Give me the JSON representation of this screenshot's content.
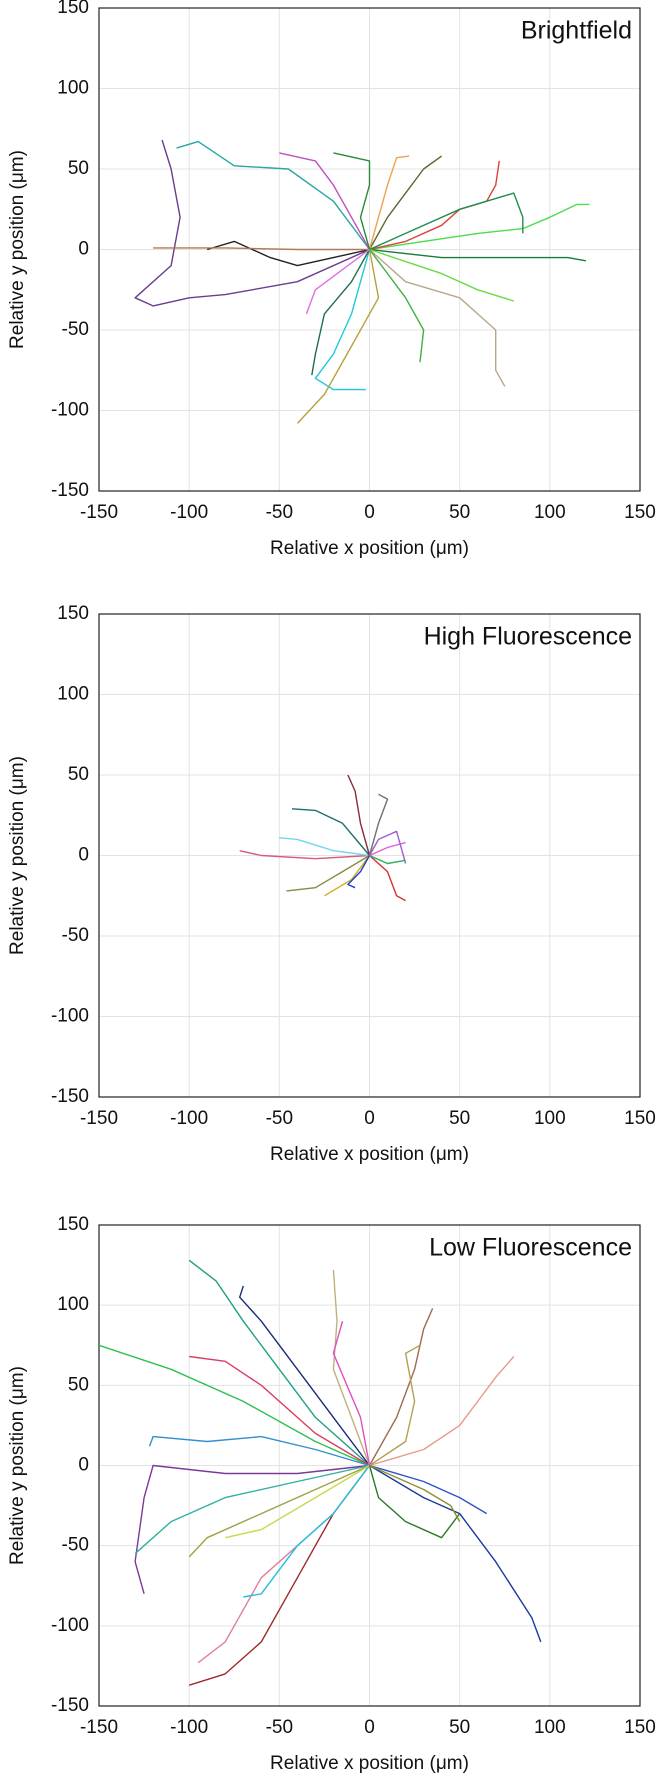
{
  "chart_data": [
    {
      "type": "line",
      "title": "Brightfield",
      "xlabel": "Relative x position (μm)",
      "ylabel": "Relative y position (μm)",
      "xlim": [
        -150,
        150
      ],
      "ylim": [
        -150,
        150
      ],
      "xticks": [
        -150,
        -100,
        -50,
        0,
        50,
        100,
        150
      ],
      "yticks": [
        -150,
        -100,
        -50,
        0,
        50,
        100,
        150
      ],
      "grid": true,
      "series": [
        {
          "color": "#6a3d8f",
          "x": [
            0,
            -40,
            -80,
            -100,
            -120,
            -130,
            -110,
            -105,
            -110,
            -115
          ],
          "values": [
            0,
            -20,
            -28,
            -30,
            -35,
            -30,
            -10,
            20,
            50,
            68
          ]
        },
        {
          "color": "#2aa6a0",
          "x": [
            0,
            -20,
            -45,
            -75,
            -95,
            -107
          ],
          "values": [
            0,
            30,
            50,
            52,
            67,
            63
          ]
        },
        {
          "color": "#222222",
          "x": [
            0,
            -20,
            -40,
            -55,
            -75,
            -90
          ],
          "values": [
            0,
            -5,
            -10,
            -5,
            5,
            0
          ]
        },
        {
          "color": "#b07a5a",
          "x": [
            0,
            -40,
            -80,
            -120
          ],
          "values": [
            0,
            0,
            1,
            1
          ]
        },
        {
          "color": "#4cdc4c",
          "x": [
            0,
            30,
            60,
            85,
            100,
            115,
            122
          ],
          "values": [
            0,
            5,
            10,
            13,
            20,
            28,
            28
          ]
        },
        {
          "color": "#1a7a3a",
          "x": [
            0,
            40,
            80,
            110,
            120
          ],
          "values": [
            0,
            -5,
            -5,
            -5,
            -7
          ]
        },
        {
          "color": "#e0403a",
          "x": [
            0,
            20,
            40,
            50,
            65,
            70,
            72
          ],
          "values": [
            0,
            5,
            15,
            25,
            30,
            40,
            55
          ]
        },
        {
          "color": "#556b2f",
          "x": [
            0,
            10,
            20,
            30,
            40
          ],
          "values": [
            0,
            20,
            35,
            50,
            58
          ]
        },
        {
          "color": "#f0a050",
          "x": [
            0,
            5,
            10,
            15,
            22
          ],
          "values": [
            0,
            20,
            40,
            57,
            58
          ]
        },
        {
          "color": "#b8a88a",
          "x": [
            0,
            20,
            50,
            70,
            70,
            75
          ],
          "values": [
            0,
            -20,
            -30,
            -50,
            -75,
            -85
          ]
        },
        {
          "color": "#22c8d8",
          "x": [
            0,
            -10,
            -20,
            -30,
            -20,
            -2
          ],
          "values": [
            0,
            -40,
            -65,
            -80,
            -87,
            -87
          ]
        },
        {
          "color": "#b8a040",
          "x": [
            0,
            5,
            -10,
            -25,
            -40
          ],
          "values": [
            0,
            -30,
            -60,
            -90,
            -108
          ]
        },
        {
          "color": "#1e6e4e",
          "x": [
            0,
            -10,
            -25,
            -30,
            -32
          ],
          "values": [
            0,
            -20,
            -40,
            -65,
            -78
          ]
        },
        {
          "color": "#40b040",
          "x": [
            0,
            20,
            30,
            28
          ],
          "values": [
            0,
            -30,
            -50,
            -70
          ]
        },
        {
          "color": "#66dd44",
          "x": [
            0,
            40,
            60,
            80
          ],
          "values": [
            0,
            -15,
            -25,
            -32
          ]
        },
        {
          "color": "#c050c0",
          "x": [
            0,
            -10,
            -20,
            -30,
            -50
          ],
          "values": [
            0,
            20,
            40,
            55,
            60
          ]
        },
        {
          "color": "#2a8a3a",
          "x": [
            0,
            -5,
            0,
            0,
            -20
          ],
          "values": [
            0,
            20,
            40,
            55,
            60
          ]
        },
        {
          "color": "#1f8f50",
          "x": [
            0,
            20,
            50,
            80,
            85,
            85
          ],
          "values": [
            0,
            10,
            25,
            35,
            20,
            10
          ]
        },
        {
          "color": "#e070e0",
          "x": [
            0,
            -30,
            -35
          ],
          "values": [
            0,
            -25,
            -40
          ]
        }
      ]
    },
    {
      "type": "line",
      "title": "High Fluorescence",
      "xlabel": "Relative x position (μm)",
      "ylabel": "Relative y position (μm)",
      "xlim": [
        -150,
        150
      ],
      "ylim": [
        -150,
        150
      ],
      "xticks": [
        -150,
        -100,
        -50,
        0,
        50,
        100,
        150
      ],
      "yticks": [
        -150,
        -100,
        -50,
        0,
        50,
        100,
        150
      ],
      "grid": true,
      "series": [
        {
          "color": "#d85a80",
          "x": [
            0,
            -30,
            -60,
            -72
          ],
          "values": [
            0,
            -2,
            0,
            3
          ]
        },
        {
          "color": "#70d8e8",
          "x": [
            0,
            -20,
            -40,
            -50
          ],
          "values": [
            0,
            3,
            10,
            11
          ]
        },
        {
          "color": "#1e6e6e",
          "x": [
            0,
            -15,
            -30,
            -43
          ],
          "values": [
            0,
            20,
            28,
            29
          ]
        },
        {
          "color": "#8a8a40",
          "x": [
            0,
            -15,
            -30,
            -46
          ],
          "values": [
            0,
            -10,
            -20,
            -22
          ]
        },
        {
          "color": "#d0b020",
          "x": [
            0,
            -10,
            -25
          ],
          "values": [
            0,
            -15,
            -25
          ]
        },
        {
          "color": "#8a2a3a",
          "x": [
            0,
            -5,
            -8,
            -12
          ],
          "values": [
            0,
            20,
            40,
            50
          ]
        },
        {
          "color": "#707070",
          "x": [
            0,
            5,
            10,
            5
          ],
          "values": [
            0,
            20,
            35,
            38
          ]
        },
        {
          "color": "#d83030",
          "x": [
            0,
            10,
            15,
            20
          ],
          "values": [
            0,
            -10,
            -25,
            -28
          ]
        },
        {
          "color": "#e060e0",
          "x": [
            0,
            10,
            20
          ],
          "values": [
            0,
            5,
            8
          ]
        },
        {
          "color": "#2040d0",
          "x": [
            0,
            -5,
            -12,
            -8
          ],
          "values": [
            0,
            -10,
            -18,
            -20
          ]
        },
        {
          "color": "#9a60d0",
          "x": [
            0,
            5,
            15,
            20
          ],
          "values": [
            0,
            10,
            15,
            -5
          ]
        },
        {
          "color": "#30b060",
          "x": [
            0,
            10,
            20
          ],
          "values": [
            0,
            -5,
            -3
          ]
        }
      ]
    },
    {
      "type": "line",
      "title": "Low Fluorescence",
      "xlabel": "Relative x position (μm)",
      "ylabel": "Relative y position (μm)",
      "xlim": [
        -150,
        150
      ],
      "ylim": [
        -150,
        150
      ],
      "xticks": [
        -150,
        -100,
        -50,
        0,
        50,
        100,
        150
      ],
      "yticks": [
        -150,
        -100,
        -50,
        0,
        50,
        100,
        150
      ],
      "grid": true,
      "series": [
        {
          "color": "#30c050",
          "x": [
            0,
            -30,
            -70,
            -110,
            -150
          ],
          "values": [
            0,
            15,
            40,
            60,
            75
          ]
        },
        {
          "color": "#20a080",
          "x": [
            0,
            -30,
            -50,
            -70,
            -85,
            -100
          ],
          "values": [
            0,
            30,
            60,
            90,
            115,
            128
          ]
        },
        {
          "color": "#1a2a7a",
          "x": [
            0,
            -20,
            -40,
            -60,
            -72,
            -70
          ],
          "values": [
            0,
            30,
            60,
            90,
            105,
            112
          ]
        },
        {
          "color": "#d84060",
          "x": [
            0,
            -30,
            -60,
            -80,
            -100
          ],
          "values": [
            0,
            20,
            50,
            65,
            68
          ]
        },
        {
          "color": "#1a3a9a",
          "x": [
            0,
            30,
            50,
            70,
            90,
            95
          ],
          "values": [
            0,
            -20,
            -30,
            -60,
            -95,
            -110
          ]
        },
        {
          "color": "#a02a2a",
          "x": [
            0,
            -20,
            -40,
            -60,
            -80,
            -100
          ],
          "values": [
            0,
            -30,
            -70,
            -110,
            -130,
            -137
          ]
        },
        {
          "color": "#e080a0",
          "x": [
            0,
            -20,
            -40,
            -60,
            -80,
            -95
          ],
          "values": [
            0,
            -30,
            -50,
            -70,
            -110,
            -123
          ]
        },
        {
          "color": "#20c0e0",
          "x": [
            0,
            -20,
            -40,
            -60,
            -70
          ],
          "values": [
            0,
            -30,
            -50,
            -80,
            -82
          ]
        },
        {
          "color": "#7a3a9a",
          "x": [
            0,
            -40,
            -80,
            -120,
            -125,
            -130,
            -125
          ],
          "values": [
            0,
            -5,
            -5,
            0,
            -20,
            -60,
            -80
          ]
        },
        {
          "color": "#30b0a0",
          "x": [
            0,
            -40,
            -80,
            -110,
            -130
          ],
          "values": [
            0,
            -10,
            -20,
            -35,
            -55
          ]
        },
        {
          "color": "#3090d0",
          "x": [
            0,
            -30,
            -60,
            -90,
            -120,
            -122
          ],
          "values": [
            0,
            10,
            18,
            15,
            18,
            12
          ]
        },
        {
          "color": "#a0a040",
          "x": [
            0,
            -30,
            -60,
            -90,
            -100
          ],
          "values": [
            0,
            -15,
            -30,
            -45,
            -57
          ]
        },
        {
          "color": "#c8d850",
          "x": [
            0,
            -30,
            -60,
            -80
          ],
          "values": [
            0,
            -20,
            -40,
            -45
          ]
        },
        {
          "color": "#c0b080",
          "x": [
            0,
            -10,
            -20,
            -18,
            -20
          ],
          "values": [
            0,
            30,
            60,
            90,
            122
          ]
        },
        {
          "color": "#e050c0",
          "x": [
            0,
            -5,
            -20,
            -15
          ],
          "values": [
            0,
            30,
            70,
            90
          ]
        },
        {
          "color": "#a06a50",
          "x": [
            0,
            15,
            25,
            30,
            35
          ],
          "values": [
            0,
            30,
            60,
            85,
            98
          ]
        },
        {
          "color": "#e89a8a",
          "x": [
            0,
            30,
            50,
            70,
            80
          ],
          "values": [
            0,
            10,
            25,
            55,
            68
          ]
        },
        {
          "color": "#b0a050",
          "x": [
            0,
            20,
            25,
            20,
            28
          ],
          "values": [
            0,
            15,
            40,
            70,
            75
          ]
        },
        {
          "color": "#2a7a2a",
          "x": [
            0,
            5,
            20,
            40,
            50
          ],
          "values": [
            0,
            -20,
            -35,
            -45,
            -30
          ]
        },
        {
          "color": "#3050d0",
          "x": [
            0,
            30,
            50,
            65
          ],
          "values": [
            0,
            -10,
            -20,
            -30
          ]
        },
        {
          "color": "#909030",
          "x": [
            0,
            30,
            45,
            50
          ],
          "values": [
            0,
            -15,
            -25,
            -35
          ]
        }
      ]
    }
  ]
}
